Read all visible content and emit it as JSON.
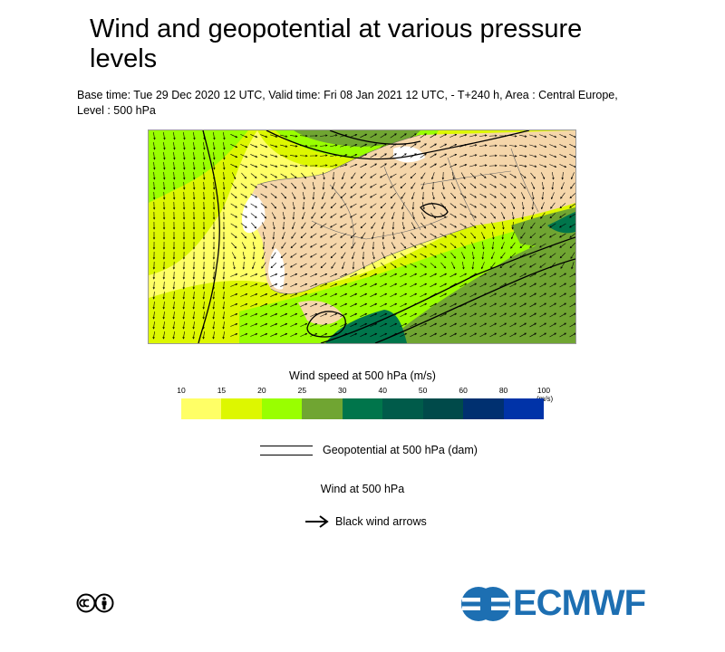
{
  "header": {
    "title": "Wind and geopotential at various pressure levels",
    "subtitle": "Base time: Tue 29 Dec 2020 12 UTC, Valid time: Fri 08 Jan 2021 12 UTC, - T+240 h, Area : Central Europe, Level : 500 hPa"
  },
  "legend": {
    "wind_speed_title": "Wind speed at 500 hPa (m/s)",
    "unit": "(m/s)",
    "ticks": [
      "10",
      "15",
      "20",
      "25",
      "30",
      "40",
      "50",
      "60",
      "80",
      "100"
    ],
    "colors": [
      "#ffff66",
      "#ddf700",
      "#99ff00",
      "#70a532",
      "#00754b",
      "#005b4a",
      "#004a4a",
      "#003070",
      "#0033a8"
    ],
    "geopotential_label": "Geopotential at 500 hPa (dam)",
    "wind_title": "Wind at 500 hPa",
    "arrow_label": "Black wind arrows"
  },
  "map": {
    "land_color": "#f5d6aa",
    "sea_color": "#ffffff"
  },
  "footer": {
    "logo_text": "ECMWF",
    "logo_color": "#1d6fb2",
    "license_icon": "cc-by-icon"
  }
}
